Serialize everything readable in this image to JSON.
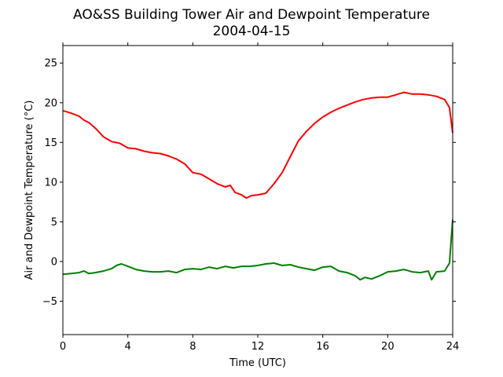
{
  "chart_data": {
    "type": "line",
    "title": "AO&SS Building Tower Air and Dewpoint Temperature",
    "subtitle": "2004-04-15",
    "xlabel": "Time (UTC)",
    "ylabel": "Air and Dewpoint Temperature (°C)",
    "xlim": [
      0,
      24
    ],
    "ylim": [
      -9.2,
      27.2
    ],
    "xticks": [
      0,
      4,
      8,
      12,
      16,
      20,
      24
    ],
    "yticks": [
      -5,
      0,
      5,
      10,
      15,
      20,
      25
    ],
    "grid": false,
    "series": [
      {
        "color": "#ff0000",
        "x": [
          0,
          0.5,
          1,
          1.3,
          1.6,
          2,
          2.5,
          3,
          3.5,
          4,
          4.5,
          5,
          5.5,
          6,
          6.5,
          7,
          7.5,
          8,
          8.5,
          9,
          9.5,
          10,
          10.3,
          10.6,
          11,
          11.3,
          11.6,
          12,
          12.5,
          13,
          13.5,
          14,
          14.5,
          15,
          15.5,
          16,
          16.5,
          17,
          17.5,
          18,
          18.5,
          19,
          19.5,
          20,
          20.5,
          21,
          21.5,
          22,
          22.5,
          23,
          23.5,
          23.8,
          24
        ],
        "y": [
          19.0,
          18.7,
          18.3,
          17.8,
          17.5,
          16.8,
          15.7,
          15.1,
          14.9,
          14.3,
          14.2,
          13.9,
          13.7,
          13.6,
          13.3,
          12.9,
          12.3,
          11.2,
          11.0,
          10.4,
          9.8,
          9.4,
          9.6,
          8.7,
          8.4,
          8.0,
          8.3,
          8.4,
          8.6,
          9.8,
          11.2,
          13.2,
          15.2,
          16.4,
          17.4,
          18.2,
          18.8,
          19.3,
          19.7,
          20.1,
          20.4,
          20.6,
          20.7,
          20.7,
          21.0,
          21.3,
          21.1,
          21.1,
          21.0,
          20.8,
          20.4,
          19.4,
          16.2
        ]
      },
      {
        "color": "#008000",
        "x": [
          0,
          0.5,
          1,
          1.3,
          1.6,
          2,
          2.5,
          3,
          3.3,
          3.6,
          4,
          4.5,
          5,
          5.5,
          6,
          6.5,
          7,
          7.5,
          8,
          8.5,
          9,
          9.5,
          10,
          10.5,
          11,
          11.5,
          12,
          12.5,
          13,
          13.5,
          14,
          14.5,
          15,
          15.5,
          16,
          16.5,
          17,
          17.5,
          18,
          18.3,
          18.6,
          19,
          19.5,
          20,
          20.5,
          21,
          21.5,
          22,
          22.5,
          22.7,
          23,
          23.5,
          23.8,
          24
        ],
        "y": [
          -1.6,
          -1.5,
          -1.4,
          -1.2,
          -1.5,
          -1.4,
          -1.2,
          -0.9,
          -0.5,
          -0.3,
          -0.6,
          -1.0,
          -1.2,
          -1.3,
          -1.3,
          -1.2,
          -1.4,
          -1.0,
          -0.9,
          -1.0,
          -0.7,
          -0.9,
          -0.6,
          -0.8,
          -0.6,
          -0.6,
          -0.5,
          -0.3,
          -0.2,
          -0.5,
          -0.4,
          -0.7,
          -0.9,
          -1.1,
          -0.7,
          -0.6,
          -1.2,
          -1.4,
          -1.8,
          -2.3,
          -2.0,
          -2.2,
          -1.8,
          -1.3,
          -1.2,
          -1.0,
          -1.3,
          -1.4,
          -1.2,
          -2.3,
          -1.3,
          -1.2,
          -0.2,
          5.3
        ]
      }
    ]
  }
}
